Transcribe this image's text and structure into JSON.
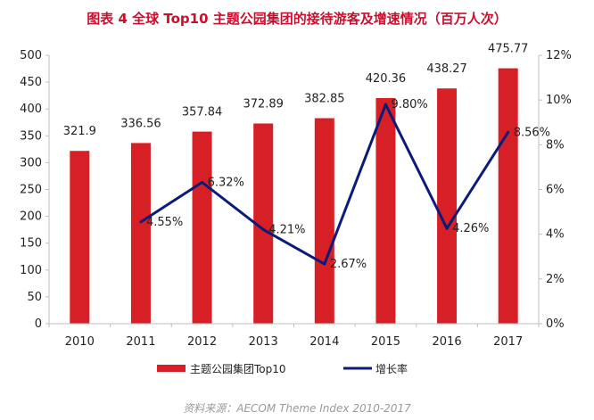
{
  "colors": {
    "bar": "#d71f26",
    "line": "#0b1b7a",
    "title": "#c8102e",
    "axis": "#bfbfbf"
  },
  "chart_data": {
    "type": "bar+line",
    "title": "图表 4 全球 Top10 主题公园集团的接待游客及增速情况（百万人次）",
    "categories": [
      "2010",
      "2011",
      "2012",
      "2013",
      "2014",
      "2015",
      "2016",
      "2017"
    ],
    "series": [
      {
        "name": "主题公园集团Top10",
        "type": "bar",
        "axis": "left",
        "values": [
          321.9,
          336.56,
          357.84,
          372.89,
          382.85,
          420.36,
          438.27,
          475.77
        ],
        "labels": [
          "321.9",
          "336.56",
          "357.84",
          "372.89",
          "382.85",
          "420.36",
          "438.27",
          "475.77"
        ]
      },
      {
        "name": "增长率",
        "type": "line",
        "axis": "right",
        "values": [
          null,
          4.55,
          6.32,
          4.21,
          2.67,
          9.8,
          4.26,
          8.56
        ],
        "labels": [
          "",
          "4.55%",
          "6.32%",
          "4.21%",
          "2.67%",
          "9.80%",
          "4.26%",
          "8.56%"
        ]
      }
    ],
    "y_left": {
      "min": 0,
      "max": 500,
      "step": 50,
      "ticks": [
        "0",
        "50",
        "100",
        "150",
        "200",
        "250",
        "300",
        "350",
        "400",
        "450",
        "500"
      ]
    },
    "y_right": {
      "min": 0,
      "max": 12,
      "step": 2,
      "ticks": [
        "0%",
        "2%",
        "4%",
        "6%",
        "8%",
        "10%",
        "12%"
      ]
    },
    "grid": false,
    "legend_position": "bottom",
    "source": "资料来源：AECOM Theme Index 2010-2017"
  }
}
